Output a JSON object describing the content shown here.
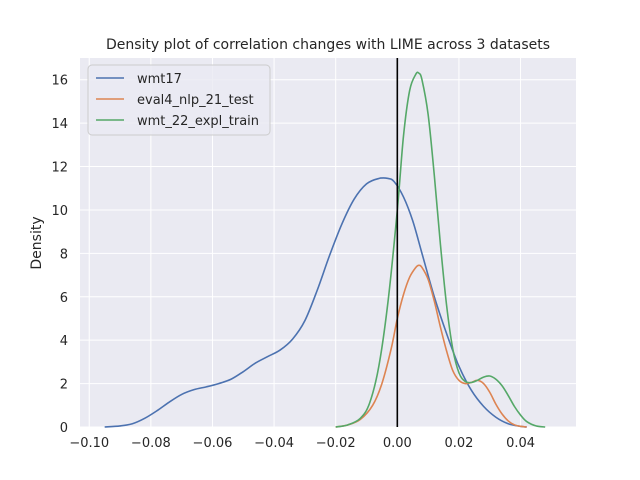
{
  "chart_data": {
    "type": "line",
    "title": "Density plot of correlation changes with LIME across 3 datasets",
    "xlabel": "",
    "ylabel": "Density",
    "xlim": [
      -0.103,
      0.058
    ],
    "ylim": [
      0,
      17.0
    ],
    "xticks": [
      -0.1,
      -0.08,
      -0.06,
      -0.04,
      -0.02,
      0.0,
      0.02,
      0.04
    ],
    "xtick_labels": [
      "−0.10",
      "−0.08",
      "−0.06",
      "−0.04",
      "−0.02",
      "0.00",
      "0.02",
      "0.04"
    ],
    "yticks": [
      0,
      2,
      4,
      6,
      8,
      10,
      12,
      14,
      16
    ],
    "ytick_labels": [
      "0",
      "2",
      "4",
      "6",
      "8",
      "10",
      "12",
      "14",
      "16"
    ],
    "grid": true,
    "legend_position": "top-left",
    "vline": {
      "x": 0.0,
      "color": "#000000"
    },
    "series": [
      {
        "name": "wmt17",
        "color": "#4c72b0",
        "x": [
          -0.095,
          -0.09,
          -0.086,
          -0.082,
          -0.078,
          -0.074,
          -0.07,
          -0.066,
          -0.062,
          -0.058,
          -0.054,
          -0.05,
          -0.046,
          -0.042,
          -0.038,
          -0.034,
          -0.03,
          -0.026,
          -0.022,
          -0.018,
          -0.014,
          -0.01,
          -0.006,
          -0.003,
          -0.001,
          0.002,
          0.005,
          0.008,
          0.012,
          0.016,
          0.02,
          0.024,
          0.028,
          0.032,
          0.036,
          0.04,
          0.042
        ],
        "y": [
          0.0,
          0.05,
          0.15,
          0.4,
          0.75,
          1.15,
          1.5,
          1.72,
          1.85,
          2.0,
          2.2,
          2.55,
          2.95,
          3.25,
          3.55,
          4.05,
          4.9,
          6.3,
          7.9,
          9.35,
          10.5,
          11.2,
          11.45,
          11.45,
          11.3,
          10.6,
          9.5,
          8.0,
          6.0,
          4.3,
          2.8,
          1.7,
          0.95,
          0.45,
          0.15,
          0.03,
          0.0
        ]
      },
      {
        "name": "eval4_nlp_21_test",
        "color": "#dd8452",
        "x": [
          -0.02,
          -0.016,
          -0.012,
          -0.008,
          -0.005,
          -0.002,
          0.0,
          0.002,
          0.004,
          0.006,
          0.007,
          0.008,
          0.01,
          0.012,
          0.014,
          0.016,
          0.018,
          0.02,
          0.022,
          0.024,
          0.026,
          0.028,
          0.03,
          0.032,
          0.034,
          0.036,
          0.038,
          0.04,
          0.042
        ],
        "y": [
          0.0,
          0.1,
          0.35,
          1.0,
          2.0,
          3.6,
          5.0,
          6.1,
          6.9,
          7.35,
          7.45,
          7.35,
          6.8,
          5.8,
          4.6,
          3.5,
          2.6,
          2.15,
          2.0,
          2.05,
          2.15,
          2.0,
          1.6,
          1.05,
          0.6,
          0.28,
          0.1,
          0.03,
          0.0
        ]
      },
      {
        "name": "wmt_22_expl_train",
        "color": "#55a868",
        "x": [
          -0.02,
          -0.016,
          -0.012,
          -0.009,
          -0.006,
          -0.003,
          0.0,
          0.002,
          0.004,
          0.006,
          0.007,
          0.008,
          0.01,
          0.012,
          0.014,
          0.016,
          0.018,
          0.02,
          0.022,
          0.024,
          0.026,
          0.028,
          0.03,
          0.032,
          0.034,
          0.036,
          0.038,
          0.04,
          0.042,
          0.045,
          0.048
        ],
        "y": [
          0.0,
          0.1,
          0.4,
          1.1,
          2.8,
          5.8,
          10.0,
          13.4,
          15.5,
          16.25,
          16.3,
          16.0,
          14.4,
          11.6,
          8.4,
          5.6,
          3.6,
          2.5,
          2.1,
          2.05,
          2.15,
          2.3,
          2.35,
          2.2,
          1.9,
          1.45,
          0.95,
          0.55,
          0.25,
          0.05,
          0.0
        ]
      }
    ]
  }
}
